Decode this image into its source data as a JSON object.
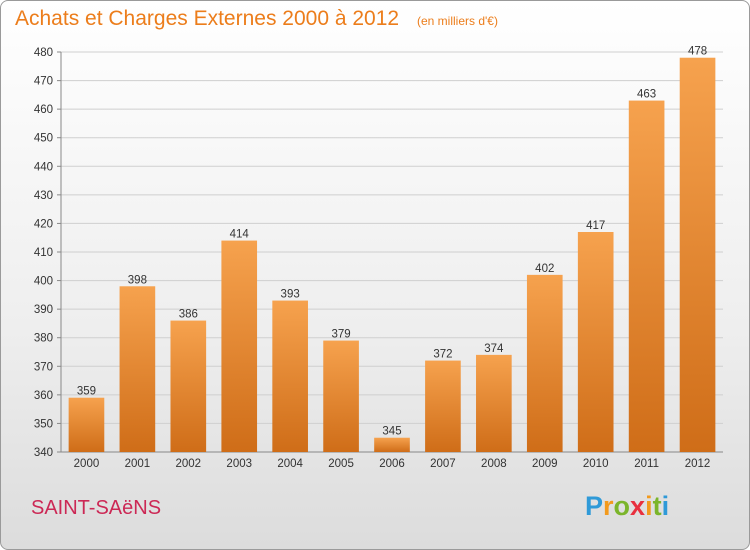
{
  "colors": {
    "accent": "#ec7d1b",
    "commune": "#cc2855",
    "bar_light": "#f6a24e",
    "bar_dark": "#cf6d18"
  },
  "header": {
    "title": "Achats et Charges Externes 2000 à 2012",
    "subtitle": "(en milliers d'€)"
  },
  "footer": {
    "commune": "SAINT-SAëNS",
    "logo_letters": [
      {
        "ch": "P",
        "color": "#2f9ad8"
      },
      {
        "ch": "r",
        "color": "#f29a1d"
      },
      {
        "ch": "o",
        "color": "#7bb52b"
      },
      {
        "ch": "x",
        "color": "#e8303e"
      },
      {
        "ch": "i",
        "color": "#f29a1d"
      },
      {
        "ch": "t",
        "color": "#7bb52b"
      },
      {
        "ch": "i",
        "color": "#2f9ad8"
      }
    ]
  },
  "chart_data": {
    "type": "bar",
    "categories": [
      "2000",
      "2001",
      "2002",
      "2003",
      "2004",
      "2005",
      "2006",
      "2007",
      "2008",
      "2009",
      "2010",
      "2011",
      "2012"
    ],
    "values": [
      359,
      398,
      386,
      414,
      393,
      379,
      345,
      372,
      374,
      402,
      417,
      463,
      478
    ],
    "ylim": [
      340,
      480
    ],
    "ytick_step": 10,
    "grid": true,
    "xlabel": "",
    "ylabel": ""
  }
}
